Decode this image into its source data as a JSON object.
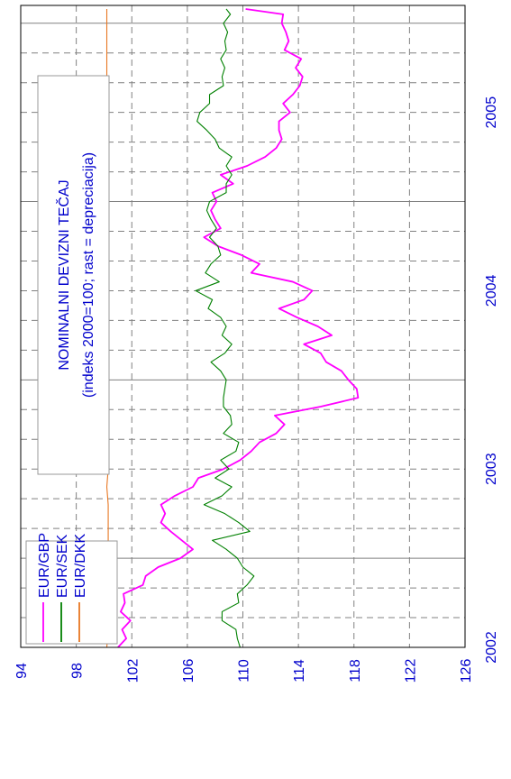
{
  "chart_data": {
    "type": "line",
    "orientation": "rotated 90 degrees counter-clockwise (value axis along the bottom, time axis along the right edge)",
    "title_lines": [
      "NOMINALNI DEVIZNI TEČAJ",
      "(indeks 2000=100; rast = depreciacija)"
    ],
    "ylim": [
      94,
      126
    ],
    "yticks": [
      94,
      98,
      102,
      106,
      110,
      114,
      118,
      122,
      126
    ],
    "xlim": [
      2001.5,
      2005.1
    ],
    "xticks": [
      2002,
      2003,
      2004,
      2005
    ],
    "xtick_labels": [
      "2002",
      "2003",
      "2004",
      "2005"
    ],
    "grid": "dashed",
    "legend_position": "top-left",
    "series": [
      {
        "name": "EUR/GBP",
        "color": "#ff00ff",
        "points": [
          [
            2001.5,
            101.0
          ],
          [
            2001.55,
            101.6
          ],
          [
            2001.6,
            101.3
          ],
          [
            2001.65,
            101.9
          ],
          [
            2001.7,
            101.2
          ],
          [
            2001.75,
            101.5
          ],
          [
            2001.8,
            101.4
          ],
          [
            2001.85,
            102.8
          ],
          [
            2001.9,
            103.0
          ],
          [
            2001.95,
            103.9
          ],
          [
            2002.0,
            105.5
          ],
          [
            2002.05,
            106.4
          ],
          [
            2002.1,
            105.6
          ],
          [
            2002.15,
            104.8
          ],
          [
            2002.2,
            104.1
          ],
          [
            2002.25,
            104.4
          ],
          [
            2002.3,
            104.1
          ],
          [
            2002.35,
            105.1
          ],
          [
            2002.4,
            106.4
          ],
          [
            2002.45,
            106.8
          ],
          [
            2002.5,
            108.6
          ],
          [
            2002.55,
            109.8
          ],
          [
            2002.6,
            110.6
          ],
          [
            2002.65,
            111.2
          ],
          [
            2002.7,
            112.4
          ],
          [
            2002.75,
            113.0
          ],
          [
            2002.8,
            112.3
          ],
          [
            2002.85,
            115.6
          ],
          [
            2002.9,
            118.3
          ],
          [
            2002.95,
            118.2
          ],
          [
            2003.0,
            117.6
          ],
          [
            2003.05,
            117.1
          ],
          [
            2003.1,
            116.0
          ],
          [
            2003.15,
            115.6
          ],
          [
            2003.2,
            114.4
          ],
          [
            2003.25,
            116.4
          ],
          [
            2003.3,
            115.4
          ],
          [
            2003.35,
            113.9
          ],
          [
            2003.4,
            112.6
          ],
          [
            2003.45,
            114.4
          ],
          [
            2003.5,
            115.0
          ],
          [
            2003.55,
            113.6
          ],
          [
            2003.6,
            110.6
          ],
          [
            2003.65,
            111.2
          ],
          [
            2003.7,
            109.9
          ],
          [
            2003.75,
            108.2
          ],
          [
            2003.8,
            107.2
          ],
          [
            2003.85,
            108.4
          ],
          [
            2003.9,
            108.0
          ],
          [
            2003.95,
            107.7
          ],
          [
            2004.0,
            108.1
          ],
          [
            2004.05,
            107.8
          ],
          [
            2004.1,
            109.3
          ],
          [
            2004.15,
            108.4
          ],
          [
            2004.2,
            110.3
          ],
          [
            2004.25,
            111.6
          ],
          [
            2004.3,
            112.4
          ],
          [
            2004.35,
            112.8
          ],
          [
            2004.4,
            112.6
          ],
          [
            2004.45,
            112.6
          ],
          [
            2004.5,
            113.4
          ],
          [
            2004.55,
            112.9
          ],
          [
            2004.6,
            113.6
          ],
          [
            2004.65,
            114.1
          ],
          [
            2004.7,
            114.3
          ],
          [
            2004.75,
            113.8
          ],
          [
            2004.8,
            114.2
          ],
          [
            2004.85,
            113.0
          ],
          [
            2004.9,
            113.3
          ],
          [
            2004.95,
            113.1
          ],
          [
            2005.0,
            112.8
          ],
          [
            2005.05,
            112.9
          ],
          [
            2005.08,
            110.2
          ]
        ]
      },
      {
        "name": "EUR/SEK",
        "color": "#008000",
        "points": [
          [
            2001.5,
            109.8
          ],
          [
            2001.55,
            109.6
          ],
          [
            2001.6,
            109.5
          ],
          [
            2001.65,
            108.5
          ],
          [
            2001.7,
            108.5
          ],
          [
            2001.75,
            109.7
          ],
          [
            2001.8,
            109.6
          ],
          [
            2001.85,
            110.3
          ],
          [
            2001.9,
            110.8
          ],
          [
            2001.95,
            110.0
          ],
          [
            2002.0,
            109.6
          ],
          [
            2002.05,
            108.8
          ],
          [
            2002.1,
            107.8
          ],
          [
            2002.15,
            110.5
          ],
          [
            2002.2,
            109.7
          ],
          [
            2002.25,
            108.7
          ],
          [
            2002.3,
            107.2
          ],
          [
            2002.35,
            108.5
          ],
          [
            2002.4,
            109.2
          ],
          [
            2002.45,
            108.0
          ],
          [
            2002.5,
            109.0
          ],
          [
            2002.55,
            108.4
          ],
          [
            2002.6,
            109.5
          ],
          [
            2002.65,
            109.7
          ],
          [
            2002.7,
            108.6
          ],
          [
            2002.75,
            109.2
          ],
          [
            2002.8,
            109.1
          ],
          [
            2002.85,
            108.6
          ],
          [
            2002.9,
            108.6
          ],
          [
            2002.95,
            108.7
          ],
          [
            2003.0,
            108.8
          ],
          [
            2003.05,
            108.4
          ],
          [
            2003.1,
            107.7
          ],
          [
            2003.15,
            108.7
          ],
          [
            2003.2,
            109.2
          ],
          [
            2003.25,
            108.5
          ],
          [
            2003.3,
            108.8
          ],
          [
            2003.35,
            108.4
          ],
          [
            2003.4,
            107.5
          ],
          [
            2003.45,
            107.8
          ],
          [
            2003.5,
            106.6
          ],
          [
            2003.55,
            108.3
          ],
          [
            2003.6,
            107.3
          ],
          [
            2003.65,
            107.7
          ],
          [
            2003.7,
            108.4
          ],
          [
            2003.75,
            108.2
          ],
          [
            2003.8,
            107.6
          ],
          [
            2003.85,
            108.1
          ],
          [
            2003.9,
            107.7
          ],
          [
            2003.95,
            107.4
          ],
          [
            2004.0,
            107.6
          ],
          [
            2004.05,
            108.8
          ],
          [
            2004.1,
            108.8
          ],
          [
            2004.15,
            109.2
          ],
          [
            2004.2,
            108.8
          ],
          [
            2004.25,
            109.2
          ],
          [
            2004.3,
            108.3
          ],
          [
            2004.35,
            108.0
          ],
          [
            2004.4,
            107.4
          ],
          [
            2004.45,
            106.7
          ],
          [
            2004.5,
            106.9
          ],
          [
            2004.55,
            107.6
          ],
          [
            2004.6,
            107.6
          ],
          [
            2004.65,
            108.6
          ],
          [
            2004.7,
            108.5
          ],
          [
            2004.75,
            108.7
          ],
          [
            2004.8,
            108.4
          ],
          [
            2004.85,
            108.8
          ],
          [
            2004.9,
            108.7
          ],
          [
            2004.95,
            108.9
          ],
          [
            2005.0,
            108.6
          ],
          [
            2005.05,
            109.1
          ],
          [
            2005.08,
            108.8
          ]
        ]
      },
      {
        "name": "EUR/DKK",
        "color": "#e87722",
        "points": [
          [
            2001.5,
            100.2
          ],
          [
            2001.6,
            100.3
          ],
          [
            2001.7,
            100.2
          ],
          [
            2001.8,
            100.3
          ],
          [
            2001.9,
            100.3
          ],
          [
            2002.0,
            100.2
          ],
          [
            2002.1,
            100.3
          ],
          [
            2002.2,
            100.3
          ],
          [
            2002.3,
            100.3
          ],
          [
            2002.4,
            100.2
          ],
          [
            2002.5,
            100.3
          ],
          [
            2002.6,
            100.3
          ],
          [
            2002.7,
            100.2
          ],
          [
            2002.8,
            100.2
          ],
          [
            2002.9,
            100.3
          ],
          [
            2003.0,
            100.3
          ],
          [
            2003.1,
            100.3
          ],
          [
            2003.2,
            100.2
          ],
          [
            2003.3,
            100.3
          ],
          [
            2003.4,
            100.3
          ],
          [
            2003.5,
            100.2
          ],
          [
            2003.6,
            100.2
          ],
          [
            2003.7,
            100.2
          ],
          [
            2003.8,
            100.2
          ],
          [
            2003.9,
            100.2
          ],
          [
            2004.0,
            100.2
          ],
          [
            2004.1,
            100.2
          ],
          [
            2004.2,
            100.2
          ],
          [
            2004.3,
            100.2
          ],
          [
            2004.4,
            100.2
          ],
          [
            2004.5,
            100.2
          ],
          [
            2004.6,
            100.2
          ],
          [
            2004.7,
            100.2
          ],
          [
            2004.8,
            100.2
          ],
          [
            2004.9,
            100.2
          ],
          [
            2005.0,
            100.2
          ],
          [
            2005.08,
            100.2
          ]
        ]
      }
    ]
  }
}
